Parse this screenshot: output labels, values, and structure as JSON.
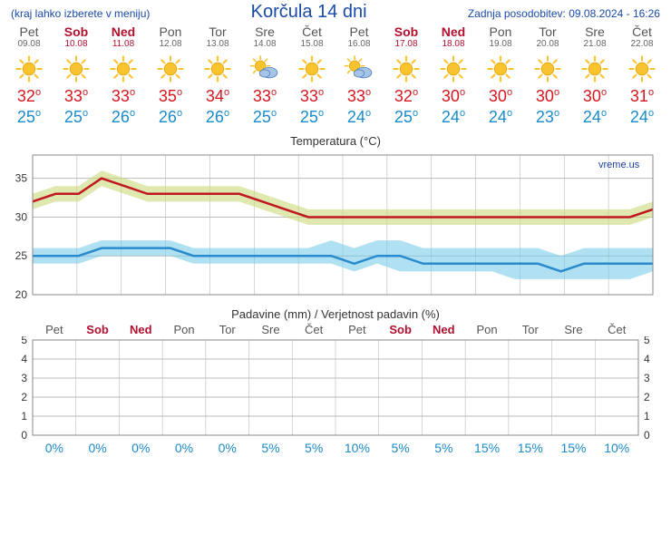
{
  "header": {
    "menu_hint": "(kraj lahko izberete v meniju)",
    "title": "Korčula 14 dni",
    "updated": "Zadnja posodobitev: 09.08.2024 - 16:26"
  },
  "days": [
    {
      "name": "Pet",
      "date": "09.08",
      "weekend": false,
      "icon": "sun",
      "high": 32,
      "low": 25
    },
    {
      "name": "Sob",
      "date": "10.08",
      "weekend": true,
      "icon": "sun",
      "high": 33,
      "low": 25
    },
    {
      "name": "Ned",
      "date": "11.08",
      "weekend": true,
      "icon": "sun",
      "high": 33,
      "low": 26
    },
    {
      "name": "Pon",
      "date": "12.08",
      "weekend": false,
      "icon": "sun",
      "high": 35,
      "low": 26
    },
    {
      "name": "Tor",
      "date": "13.08",
      "weekend": false,
      "icon": "sun",
      "high": 34,
      "low": 26
    },
    {
      "name": "Sre",
      "date": "14.08",
      "weekend": false,
      "icon": "suncloud",
      "high": 33,
      "low": 25
    },
    {
      "name": "Čet",
      "date": "15.08",
      "weekend": false,
      "icon": "sun",
      "high": 33,
      "low": 25
    },
    {
      "name": "Pet",
      "date": "16.08",
      "weekend": false,
      "icon": "suncloud",
      "high": 33,
      "low": 24
    },
    {
      "name": "Sob",
      "date": "17.08",
      "weekend": true,
      "icon": "sun",
      "high": 32,
      "low": 25
    },
    {
      "name": "Ned",
      "date": "18.08",
      "weekend": true,
      "icon": "sun",
      "high": 30,
      "low": 24
    },
    {
      "name": "Pon",
      "date": "19.08",
      "weekend": false,
      "icon": "sun",
      "high": 30,
      "low": 24
    },
    {
      "name": "Tor",
      "date": "20.08",
      "weekend": false,
      "icon": "sun",
      "high": 30,
      "low": 23
    },
    {
      "name": "Sre",
      "date": "21.08",
      "weekend": false,
      "icon": "sun",
      "high": 30,
      "low": 24
    },
    {
      "name": "Čet",
      "date": "22.08",
      "weekend": false,
      "icon": "sun",
      "high": 31,
      "low": 24
    }
  ],
  "temp_chart": {
    "title": "Temperatura (°C)",
    "watermark": "vreme.us",
    "ylim": [
      20,
      38
    ],
    "yticks": [
      20,
      25,
      30,
      35
    ],
    "grid_color": "#bbbbbb",
    "bg_color": "#ffffff",
    "high": {
      "line_color": "#c01820",
      "band_color": "#c8d87a",
      "band_opacity": 0.6,
      "values": [
        32,
        33,
        33,
        35,
        34,
        33,
        33,
        33,
        33,
        33,
        32,
        31,
        30,
        30,
        30,
        30,
        30,
        30,
        30,
        30,
        30,
        30,
        30,
        30,
        30,
        30,
        30,
        31
      ],
      "band_lo": [
        31,
        32,
        32,
        34,
        33,
        32,
        32,
        32,
        32,
        32,
        31,
        30,
        29,
        29,
        29,
        29,
        29,
        29,
        29,
        29,
        29,
        29,
        29,
        29,
        29,
        29,
        29,
        30
      ],
      "band_hi": [
        33,
        34,
        34,
        36,
        35,
        34,
        34,
        34,
        34,
        34,
        33,
        32,
        31,
        31,
        31,
        31,
        31,
        31,
        31,
        31,
        31,
        31,
        31,
        31,
        31,
        31,
        31,
        32
      ]
    },
    "low": {
      "line_color": "#2a8acb",
      "band_color": "#6fc8e8",
      "band_opacity": 0.55,
      "values": [
        25,
        25,
        25,
        26,
        26,
        26,
        26,
        25,
        25,
        25,
        25,
        25,
        25,
        25,
        24,
        25,
        25,
        24,
        24,
        24,
        24,
        24,
        24,
        23,
        24,
        24,
        24,
        24
      ],
      "band_lo": [
        24,
        24,
        24,
        25,
        25,
        25,
        25,
        24,
        24,
        24,
        24,
        24,
        24,
        24,
        23,
        24,
        23,
        23,
        23,
        23,
        23,
        22,
        22,
        22,
        22,
        22,
        22,
        23
      ],
      "band_hi": [
        26,
        26,
        26,
        27,
        27,
        27,
        27,
        26,
        26,
        26,
        26,
        26,
        26,
        27,
        26,
        27,
        27,
        26,
        26,
        26,
        26,
        26,
        26,
        25,
        26,
        26,
        26,
        26
      ]
    }
  },
  "precip_chart": {
    "title": "Padavine (mm) / Verjetnost padavin (%)",
    "ylim": [
      0,
      5
    ],
    "yticks": [
      0,
      1,
      2,
      3,
      4,
      5
    ],
    "grid_color": "#bbbbbb",
    "bar_color": "#4a80c0",
    "prob_color": "#1a8acb",
    "days": [
      "Pet",
      "Sob",
      "Ned",
      "Pon",
      "Tor",
      "Sre",
      "Čet",
      "Pet",
      "Sob",
      "Ned",
      "Pon",
      "Tor",
      "Sre",
      "Čet"
    ],
    "weekend_flags": [
      false,
      true,
      true,
      false,
      false,
      false,
      false,
      false,
      true,
      true,
      false,
      false,
      false,
      false
    ],
    "bars": [
      0,
      0,
      0,
      0,
      0,
      0,
      0,
      0,
      0,
      0,
      0,
      0,
      0,
      0
    ],
    "probs": [
      "0%",
      "0%",
      "0%",
      "0%",
      "0%",
      "5%",
      "5%",
      "10%",
      "5%",
      "5%",
      "15%",
      "15%",
      "15%",
      "10%"
    ]
  }
}
